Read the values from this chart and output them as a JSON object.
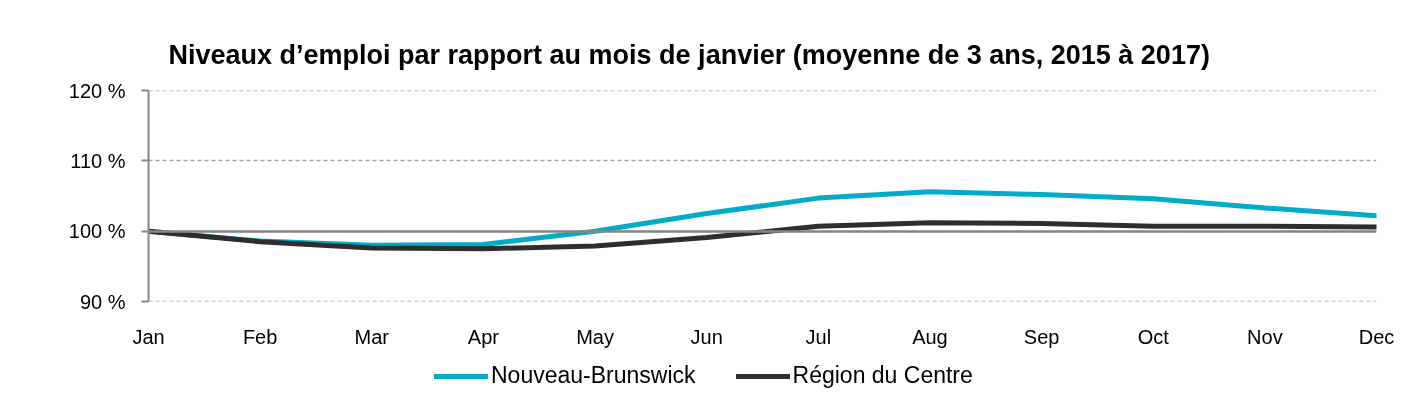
{
  "chart_data": {
    "type": "line",
    "title": "Niveaux d’emploi par rapport au mois de janvier (moyenne de 3 ans, 2015 à 2017)",
    "categories": [
      "Jan",
      "Feb",
      "Mar",
      "Apr",
      "May",
      "Jun",
      "Jul",
      "Aug",
      "Sep",
      "Oct",
      "Nov",
      "Dec"
    ],
    "series": [
      {
        "name": "Nouveau-Brunswick",
        "color": "#00acc8",
        "values": [
          100,
          98.6,
          98.0,
          98.1,
          100.0,
          102.5,
          104.7,
          105.6,
          105.2,
          104.6,
          103.3,
          102.2
        ]
      },
      {
        "name": "Région du Centre",
        "color": "#2e2e2e",
        "values": [
          100,
          98.5,
          97.6,
          97.5,
          97.9,
          99.1,
          100.7,
          101.2,
          101.1,
          100.7,
          100.7,
          100.6
        ]
      }
    ],
    "ylim": [
      90,
      120
    ],
    "yticks": [
      {
        "value": 90,
        "label": "90 %"
      },
      {
        "value": 100,
        "label": "100 %"
      },
      {
        "value": 110,
        "label": "110 %"
      },
      {
        "value": 120,
        "label": "120 %"
      }
    ],
    "ref_lines": [
      {
        "axis": "y",
        "value": 100,
        "color": "#868686"
      }
    ],
    "grid": "y",
    "legend": "bottom",
    "line_style": "solid"
  }
}
